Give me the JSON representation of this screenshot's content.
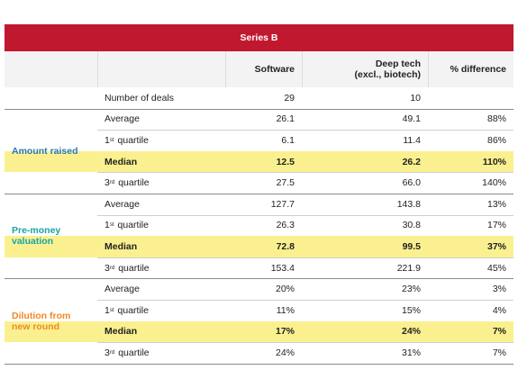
{
  "header": {
    "title": "Series B"
  },
  "columns": [
    {
      "lines": [
        "Software"
      ]
    },
    {
      "lines": [
        "Deep tech",
        "(excl., biotech)"
      ]
    },
    {
      "lines": [
        "% difference"
      ]
    }
  ],
  "rows": [
    {
      "label": "Number of deals",
      "values": [
        "29",
        "10"
      ]
    }
  ],
  "groups": [
    {
      "name": "Amount raised",
      "color": "#2878b8",
      "rows": [
        {
          "label": "Average",
          "values": [
            "26.1",
            "49.1",
            "88%"
          ]
        },
        {
          "ordinal": "1",
          "suffix": "st",
          "label": "quartile",
          "values": [
            "6.1",
            "11.4",
            "86%"
          ]
        },
        {
          "label": "Median",
          "highlight": true,
          "values": [
            "12.5",
            "26.2",
            "110%"
          ]
        },
        {
          "ordinal": "3",
          "suffix": "rd",
          "label": "quartile",
          "values": [
            "27.5",
            "66.0",
            "140%"
          ]
        }
      ]
    },
    {
      "name": "Pre-money valuation",
      "color": "#17a3a8",
      "rows": [
        {
          "label": "Average",
          "values": [
            "127.7",
            "143.8",
            "13%"
          ]
        },
        {
          "ordinal": "1",
          "suffix": "st",
          "label": "quartile",
          "values": [
            "26.3",
            "30.8",
            "17%"
          ]
        },
        {
          "label": "Median",
          "highlight": true,
          "values": [
            "72.8",
            "99.5",
            "37%"
          ]
        },
        {
          "ordinal": "3",
          "suffix": "rd",
          "label": "quartile",
          "values": [
            "153.4",
            "221.9",
            "45%"
          ]
        }
      ]
    },
    {
      "name": "Dilution from new round",
      "color": "#ef8a25",
      "rows": [
        {
          "label": "Average",
          "values": [
            "20%",
            "23%",
            "3%"
          ]
        },
        {
          "ordinal": "1",
          "suffix": "st",
          "label": "quartile",
          "values": [
            "11%",
            "15%",
            "4%"
          ]
        },
        {
          "label": "Median",
          "highlight": true,
          "values": [
            "17%",
            "24%",
            "7%"
          ]
        },
        {
          "ordinal": "3",
          "suffix": "rd",
          "label": "quartile",
          "values": [
            "24%",
            "31%",
            "7%"
          ]
        }
      ]
    }
  ]
}
